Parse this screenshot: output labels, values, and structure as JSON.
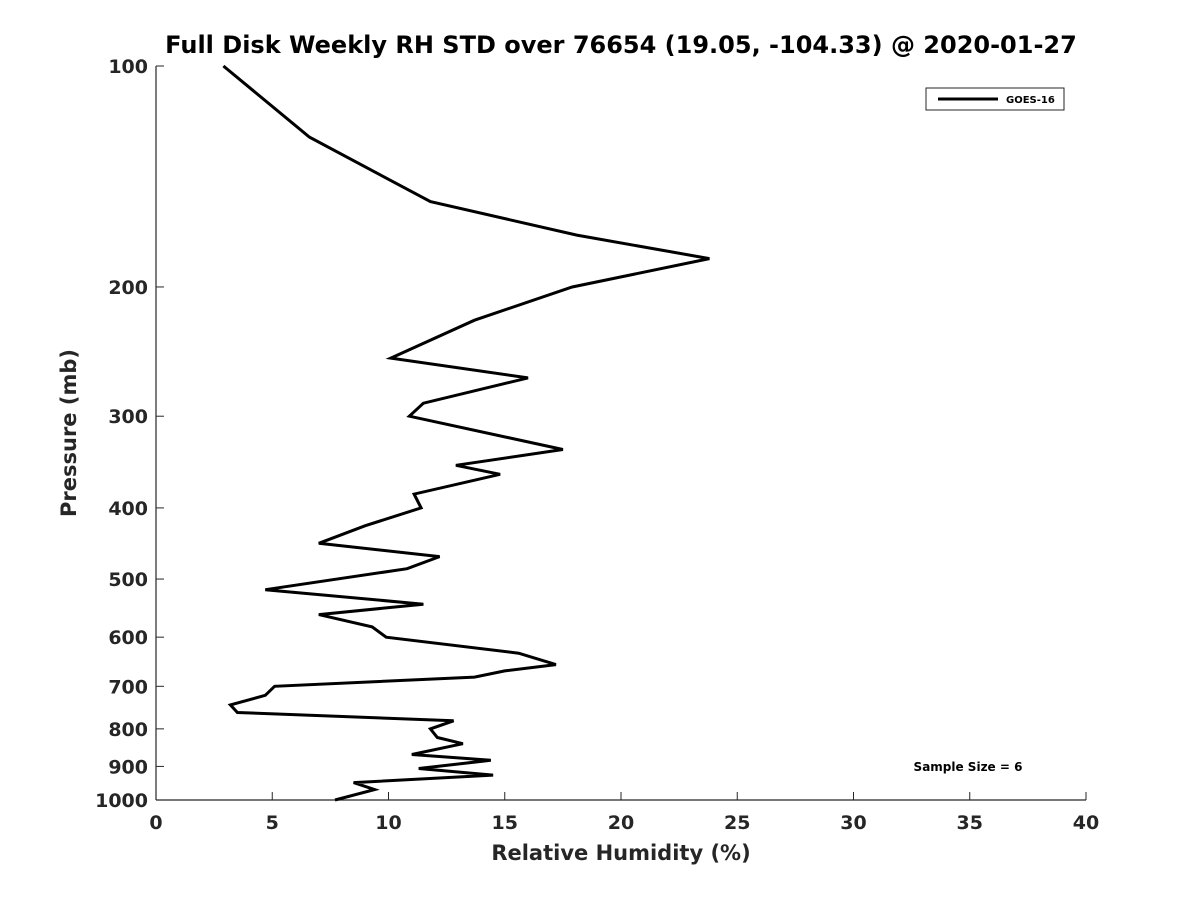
{
  "chart_data": {
    "type": "line",
    "title": "Full Disk Weekly RH STD over 76654 (19.05, -104.33) @ 2020-01-27",
    "xlabel": "Relative Humidity (%)",
    "ylabel": "Pressure (mb)",
    "xlim": [
      0,
      40
    ],
    "ylim": [
      100,
      1000
    ],
    "y_scale": "log",
    "y_reversed": true,
    "grid": false,
    "x_ticks": [
      0,
      5,
      10,
      15,
      20,
      25,
      30,
      35,
      40
    ],
    "y_ticks": [
      100,
      200,
      300,
      400,
      500,
      600,
      700,
      800,
      900,
      1000
    ],
    "legend": {
      "position": "top-right",
      "entries": [
        "GOES-16"
      ]
    },
    "annotation": "Sample Size = 6",
    "series": [
      {
        "name": "GOES-16",
        "color": "#000000",
        "points": [
          [
            2.9,
            100
          ],
          [
            6.6,
            125
          ],
          [
            11.8,
            153
          ],
          [
            18.1,
            170
          ],
          [
            23.8,
            183
          ],
          [
            17.9,
            200
          ],
          [
            13.7,
            222
          ],
          [
            10.1,
            250
          ],
          [
            16.0,
            266
          ],
          [
            11.5,
            288
          ],
          [
            10.9,
            300
          ],
          [
            17.5,
            333
          ],
          [
            12.9,
            350
          ],
          [
            14.8,
            360
          ],
          [
            11.1,
            383
          ],
          [
            11.4,
            400
          ],
          [
            9.0,
            423
          ],
          [
            7.0,
            447
          ],
          [
            12.2,
            466
          ],
          [
            10.8,
            484
          ],
          [
            4.7,
            517
          ],
          [
            11.5,
            541
          ],
          [
            7.0,
            559
          ],
          [
            9.3,
            581
          ],
          [
            9.9,
            600
          ],
          [
            15.6,
            631
          ],
          [
            17.2,
            654
          ],
          [
            15.0,
            667
          ],
          [
            13.7,
            680
          ],
          [
            5.1,
            700
          ],
          [
            4.7,
            720
          ],
          [
            3.2,
            742
          ],
          [
            3.5,
            760
          ],
          [
            12.8,
            780
          ],
          [
            11.8,
            800
          ],
          [
            12.1,
            822
          ],
          [
            13.2,
            838
          ],
          [
            11.0,
            867
          ],
          [
            14.4,
            883
          ],
          [
            11.3,
            906
          ],
          [
            14.5,
            925
          ],
          [
            8.5,
            947
          ],
          [
            9.4,
            968
          ],
          [
            7.7,
            1000
          ]
        ]
      }
    ]
  }
}
